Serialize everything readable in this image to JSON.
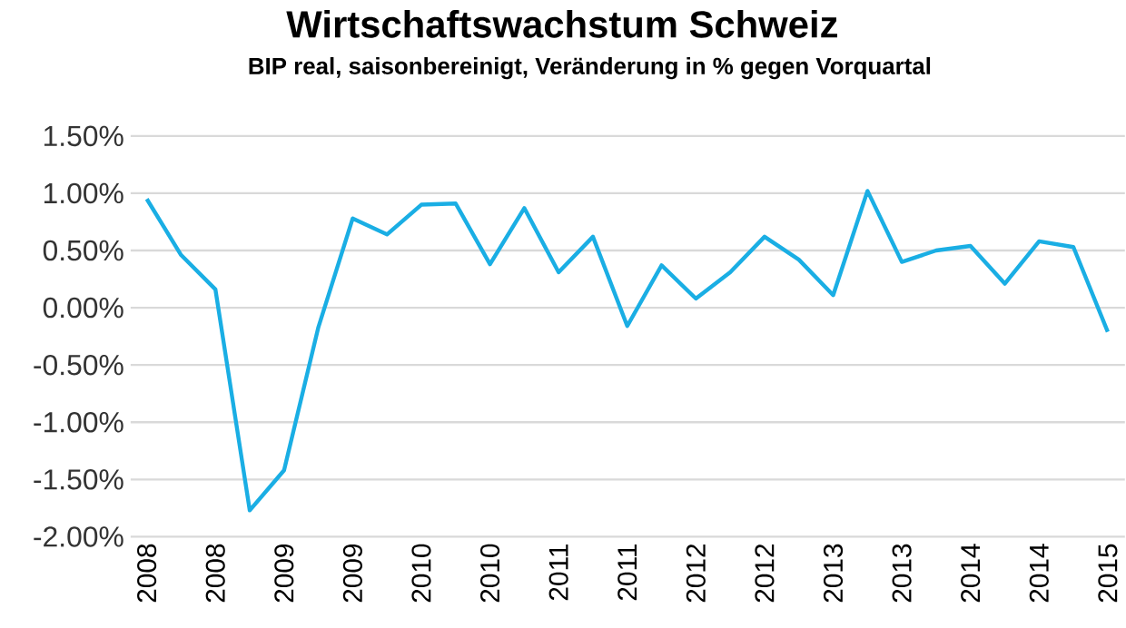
{
  "chart_data": {
    "type": "line",
    "title": "Wirtschaftswachstum Schweiz",
    "subtitle": "BIP real, saisonbereinigt, Veränderung in % gegen Vorquartal",
    "categories": [
      "2008",
      null,
      "2008",
      null,
      "2009",
      null,
      "2009",
      null,
      "2010",
      null,
      "2010",
      null,
      "2011",
      null,
      "2011",
      null,
      "2012",
      null,
      "2012",
      null,
      "2013",
      null,
      "2013",
      null,
      "2014",
      null,
      "2014",
      null,
      "2015"
    ],
    "series": [
      {
        "color": "#1aaee4",
        "values": [
          0.95,
          0.46,
          0.16,
          -1.77,
          -1.42,
          -0.17,
          0.78,
          0.64,
          0.9,
          0.91,
          0.38,
          0.87,
          0.31,
          0.62,
          -0.16,
          0.37,
          0.08,
          0.31,
          0.62,
          0.42,
          0.11,
          1.02,
          0.4,
          0.5,
          0.54,
          0.21,
          0.58,
          0.53,
          -0.21
        ]
      }
    ],
    "ylim": [
      -2.0,
      1.5
    ],
    "yticks": [
      {
        "value": -2.0,
        "label": "-2.00%"
      },
      {
        "value": -1.5,
        "label": "-1.50%"
      },
      {
        "value": -1.0,
        "label": "-1.00%"
      },
      {
        "value": -0.5,
        "label": "-0.50%"
      },
      {
        "value": 0.0,
        "label": "0.00%"
      },
      {
        "value": 0.5,
        "label": "0.50%"
      },
      {
        "value": 1.0,
        "label": "1.00%"
      },
      {
        "value": 1.5,
        "label": "1.50%"
      }
    ],
    "grid": "y",
    "marker": "none",
    "line_style": "solid"
  }
}
